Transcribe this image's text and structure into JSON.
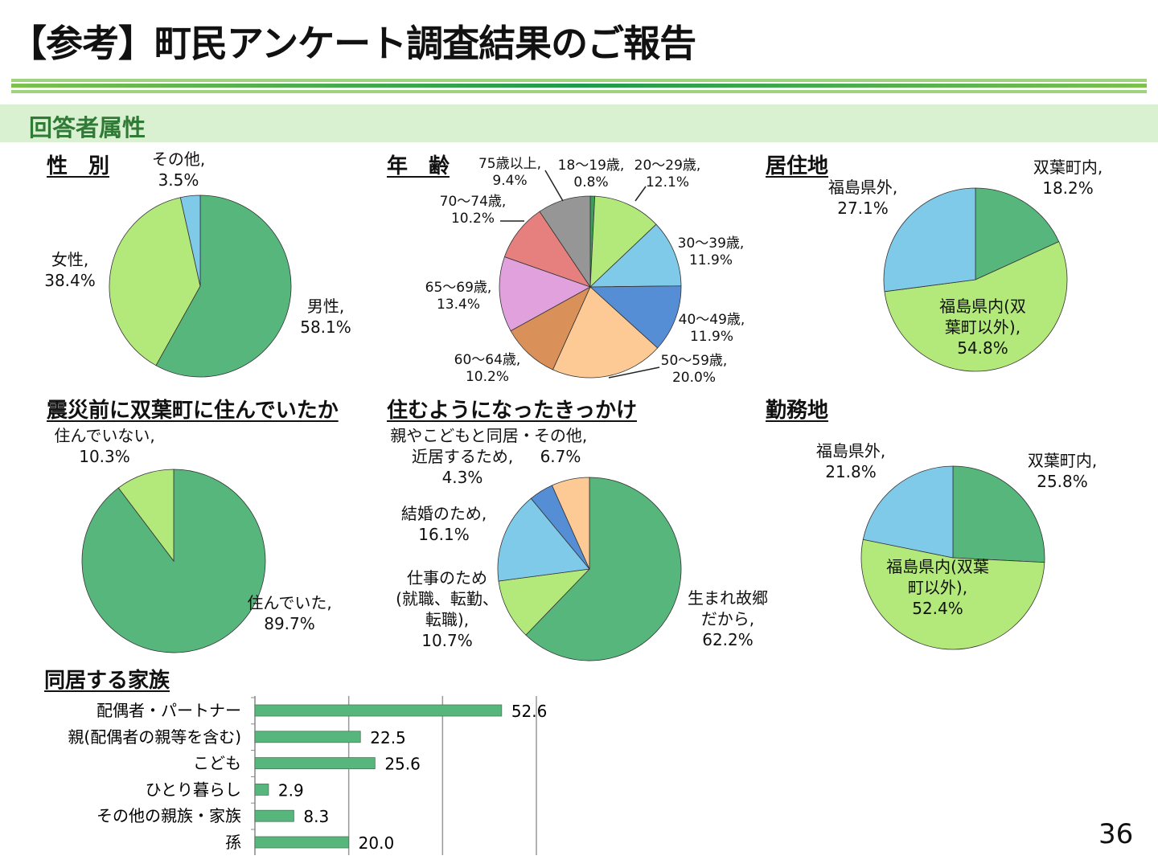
{
  "title": "【参考】町民アンケート調査結果のご報告",
  "section": "回答者属性",
  "page_number": "36",
  "colors": {
    "green": "#57b67b",
    "light_green": "#b3e97b",
    "light_blue": "#7fcae9",
    "blue": "#568ed6",
    "peach": "#fdca95",
    "brown": "#d99059",
    "pink": "#e1a1dd",
    "salmon": "#e5807f",
    "gray": "#969696",
    "dark_green": "#3b9f5b",
    "band": "#d9f1d1",
    "accent": "#2f7a35"
  },
  "chart_data": [
    {
      "type": "pie",
      "title": "性　別",
      "slices": [
        {
          "label": "男性,",
          "value": 58.1,
          "color": "#57b67b"
        },
        {
          "label": "女性,",
          "value": 38.4,
          "color": "#b3e97b"
        },
        {
          "label": "その他,",
          "value": 3.5,
          "color": "#7fcae9"
        }
      ]
    },
    {
      "type": "pie",
      "title": "年　齢",
      "slices": [
        {
          "label": "18～19歳,",
          "value": 0.8,
          "color": "#3b9f5b"
        },
        {
          "label": "20～29歳,",
          "value": 12.1,
          "color": "#b3e97b"
        },
        {
          "label": "30～39歳,",
          "value": 11.9,
          "color": "#7fcae9"
        },
        {
          "label": "40～49歳,",
          "value": 11.9,
          "color": "#568ed6"
        },
        {
          "label": "50～59歳,",
          "value": 20.0,
          "color": "#fdca95"
        },
        {
          "label": "60～64歳,",
          "value": 10.2,
          "color": "#d99059"
        },
        {
          "label": "65～69歳,",
          "value": 13.4,
          "color": "#e1a1dd"
        },
        {
          "label": "70～74歳,",
          "value": 10.2,
          "color": "#e5807f"
        },
        {
          "label": "75歳以上,",
          "value": 9.4,
          "color": "#969696"
        }
      ]
    },
    {
      "type": "pie",
      "title": "居住地",
      "slices": [
        {
          "label": "双葉町内,",
          "value": 18.2,
          "color": "#57b67b"
        },
        {
          "label": "福島県内(双\n葉町以外),",
          "value": 54.8,
          "color": "#b3e97b"
        },
        {
          "label": "福島県外,",
          "value": 27.1,
          "color": "#7fcae9"
        }
      ]
    },
    {
      "type": "pie",
      "title": "震災前に双葉町に住んでいたか",
      "slices": [
        {
          "label": "住んでいた,",
          "value": 89.7,
          "color": "#57b67b"
        },
        {
          "label": "住んでいない,",
          "value": 10.3,
          "color": "#b3e97b"
        }
      ]
    },
    {
      "type": "pie",
      "title": "住むようになったきっかけ",
      "slices": [
        {
          "label": "生まれ故郷\nだから,",
          "value": 62.2,
          "color": "#57b67b"
        },
        {
          "label": "仕事のため\n(就職、転勤、\n転職),",
          "value": 10.7,
          "color": "#b3e97b"
        },
        {
          "label": "結婚のため,",
          "value": 16.1,
          "color": "#7fcae9"
        },
        {
          "label": "親やこどもと同居・\n近居するため,",
          "value": 4.3,
          "color": "#568ed6"
        },
        {
          "label": "その他,",
          "value": 6.7,
          "color": "#fdca95"
        }
      ]
    },
    {
      "type": "pie",
      "title": "勤務地",
      "slices": [
        {
          "label": "双葉町内,",
          "value": 25.8,
          "color": "#57b67b"
        },
        {
          "label": "福島県内(双葉\n町以外),",
          "value": 52.4,
          "color": "#b3e97b"
        },
        {
          "label": "福島県外,",
          "value": 21.8,
          "color": "#7fcae9"
        }
      ]
    },
    {
      "type": "bar",
      "orientation": "horizontal",
      "title": "同居する家族",
      "categories": [
        "配偶者・パートナー",
        "親(配偶者の親等を含む)",
        "こども",
        "ひとり暮らし",
        "その他の親族・家族",
        "孫"
      ],
      "values": [
        52.6,
        22.5,
        25.6,
        2.9,
        8.3,
        20.0
      ],
      "value_labels": [
        "52.6",
        "22.5",
        "25.6",
        "2.9",
        "8.3",
        "20.0"
      ],
      "xlim": [
        0,
        60
      ],
      "grid": true,
      "color": "#57b67b"
    }
  ]
}
